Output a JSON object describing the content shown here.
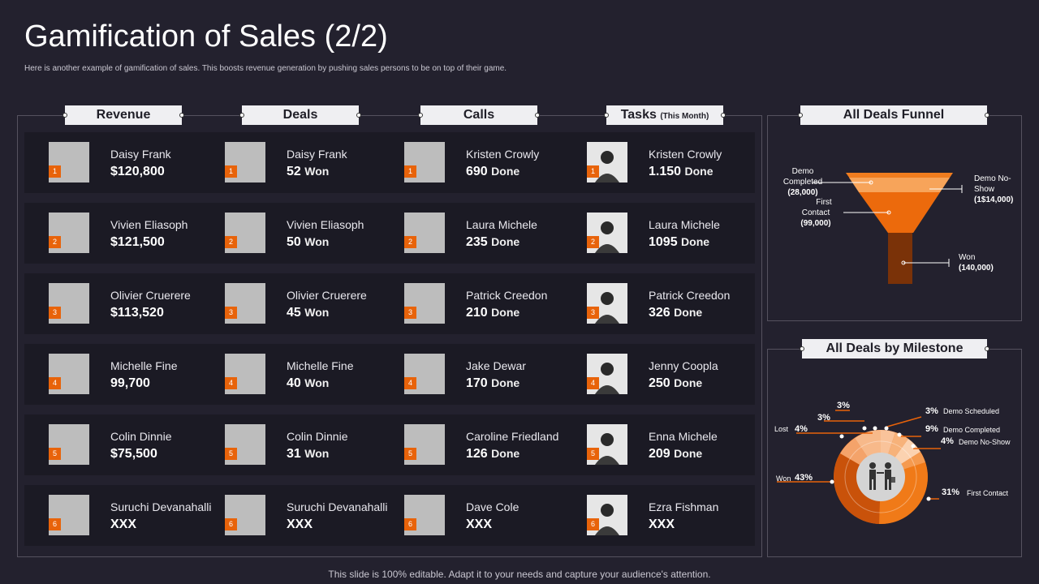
{
  "page": {
    "title": "Gamification of Sales (2/2)",
    "subtitle": "Here is another example of gamification of sales. This boosts revenue generation by pushing sales persons to be on top of their game.",
    "footer": "This slide is 100% editable. Adapt it to your needs and capture your audience's attention."
  },
  "columns": {
    "revenue": "Revenue",
    "deals": "Deals",
    "calls": "Calls",
    "tasks": "Tasks",
    "tasks_note": "(This Month)"
  },
  "units": {
    "won": "Won",
    "done": "Done"
  },
  "rows": [
    {
      "rank": "1",
      "revenue": {
        "name": "Daisy Frank",
        "value": "$120,800"
      },
      "deals": {
        "name": "Daisy Frank",
        "value": "52"
      },
      "calls": {
        "name": "Kristen Crowly",
        "value": "690"
      },
      "tasks": {
        "name": "Kristen Crowly",
        "value": "1.150"
      }
    },
    {
      "rank": "2",
      "revenue": {
        "name": "Vivien Eliasoph",
        "value": "$121,500"
      },
      "deals": {
        "name": "Vivien Eliasoph",
        "value": "50"
      },
      "calls": {
        "name": "Laura Michele",
        "value": "235"
      },
      "tasks": {
        "name": "Laura Michele",
        "value": "1095"
      }
    },
    {
      "rank": "3",
      "revenue": {
        "name": "Olivier Cruerere",
        "value": "$113,520"
      },
      "deals": {
        "name": "Olivier Cruerere",
        "value": "45"
      },
      "calls": {
        "name": "Patrick Creedon",
        "value": "210"
      },
      "tasks": {
        "name": "Patrick Creedon",
        "value": "326"
      }
    },
    {
      "rank": "4",
      "revenue": {
        "name": "Michelle Fine",
        "value": "99,700"
      },
      "deals": {
        "name": "Michelle Fine",
        "value": "40"
      },
      "calls": {
        "name": "Jake Dewar",
        "value": "170"
      },
      "tasks": {
        "name": "Jenny Coopla",
        "value": "250"
      }
    },
    {
      "rank": "5",
      "revenue": {
        "name": "Colin Dinnie",
        "value": "$75,500"
      },
      "deals": {
        "name": "Colin Dinnie",
        "value": "31"
      },
      "calls": {
        "name": "Caroline Friedland",
        "value": "126"
      },
      "tasks": {
        "name": "Enna Michele",
        "value": "209"
      }
    },
    {
      "rank": "6",
      "revenue": {
        "name": "Suruchi Devanahalli",
        "value": "XXX"
      },
      "deals": {
        "name": "Suruchi Devanahalli",
        "value": "XXX"
      },
      "calls": {
        "name": "Dave Cole",
        "value": "XXX"
      },
      "tasks": {
        "name": "Ezra Fishman",
        "value": "XXX"
      }
    }
  ],
  "funnel": {
    "title": "All Deals Funnel",
    "labels": {
      "demo_completed": [
        "Demo",
        "Completed",
        "(28,000)"
      ],
      "first_contact": [
        "First",
        "Contact",
        "(99,000)"
      ],
      "demo_no_show": [
        "Demo No-",
        "Show",
        "(1$14,000)"
      ],
      "won": [
        "Won",
        "(140,000)"
      ]
    }
  },
  "milestone": {
    "title": "All Deals by Milestone",
    "labels": {
      "demo_scheduled": {
        "pct": "3%",
        "name": "Demo Scheduled"
      },
      "demo_completed": {
        "pct": "9%",
        "name": "Demo Completed"
      },
      "demo_no_show": {
        "pct": "4%",
        "name": "Demo No-Show"
      },
      "first_contact": {
        "pct": "31%",
        "name": "First Contact"
      },
      "won": {
        "pct": "43%",
        "name": "Won"
      },
      "lost": {
        "pct": "4%",
        "name": "Lost"
      },
      "top_a": {
        "pct": "3%"
      },
      "top_b": {
        "pct": "3%"
      }
    }
  },
  "colors": {
    "accent": "#e8630a",
    "background": "#23212e",
    "row": "#1b1a24"
  }
}
